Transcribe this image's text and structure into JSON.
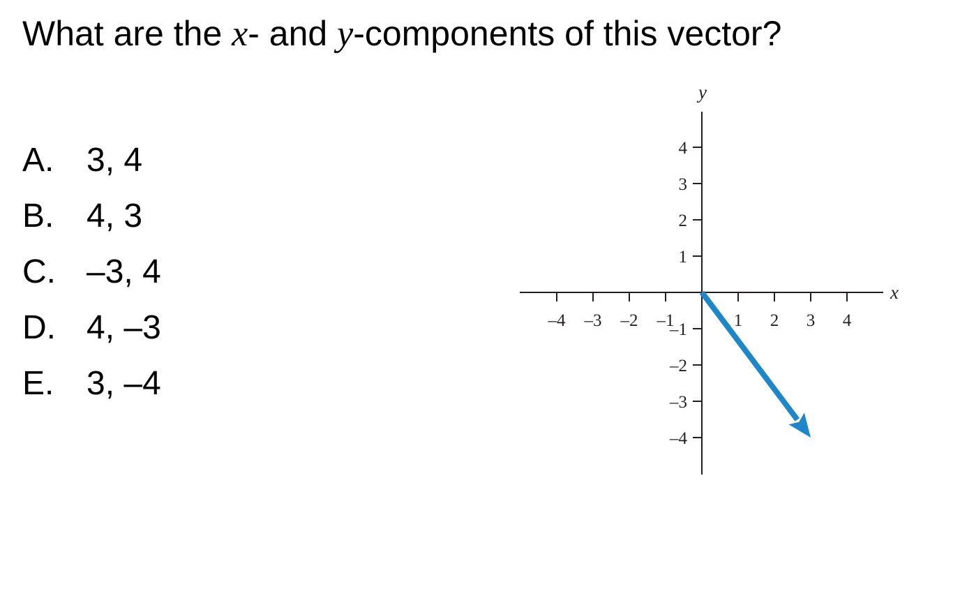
{
  "question": {
    "before": "What are the ",
    "var1": "x",
    "middle": "- and ",
    "var2": "y",
    "after": "-components of this vector?"
  },
  "choices": [
    {
      "letter": "A.",
      "text": "3, 4"
    },
    {
      "letter": "B.",
      "text": "4, 3"
    },
    {
      "letter": "C.",
      "text": "–3, 4"
    },
    {
      "letter": "D.",
      "text": "4, –3"
    },
    {
      "letter": "E.",
      "text": "3, –4"
    }
  ],
  "diagram": {
    "x_axis_label": "x",
    "y_axis_label": "y",
    "x_ticks": [
      {
        "value": -4,
        "label": "–4"
      },
      {
        "value": -3,
        "label": "–3"
      },
      {
        "value": -2,
        "label": "–2"
      },
      {
        "value": -1,
        "label": "–1"
      },
      {
        "value": 1,
        "label": "1"
      },
      {
        "value": 2,
        "label": "2"
      },
      {
        "value": 3,
        "label": "3"
      },
      {
        "value": 4,
        "label": "4"
      }
    ],
    "y_ticks": [
      {
        "value": 4,
        "label": "4"
      },
      {
        "value": 3,
        "label": "3"
      },
      {
        "value": 2,
        "label": "2"
      },
      {
        "value": 1,
        "label": "1"
      },
      {
        "value": -1,
        "label": "–1"
      },
      {
        "value": -2,
        "label": "–2"
      },
      {
        "value": -3,
        "label": "–3"
      },
      {
        "value": -4,
        "label": "–4"
      }
    ],
    "vector": {
      "from": [
        0,
        0
      ],
      "to": [
        3,
        -4
      ]
    },
    "vector_color": "#1f87c8",
    "axis_color": "#231f20"
  }
}
